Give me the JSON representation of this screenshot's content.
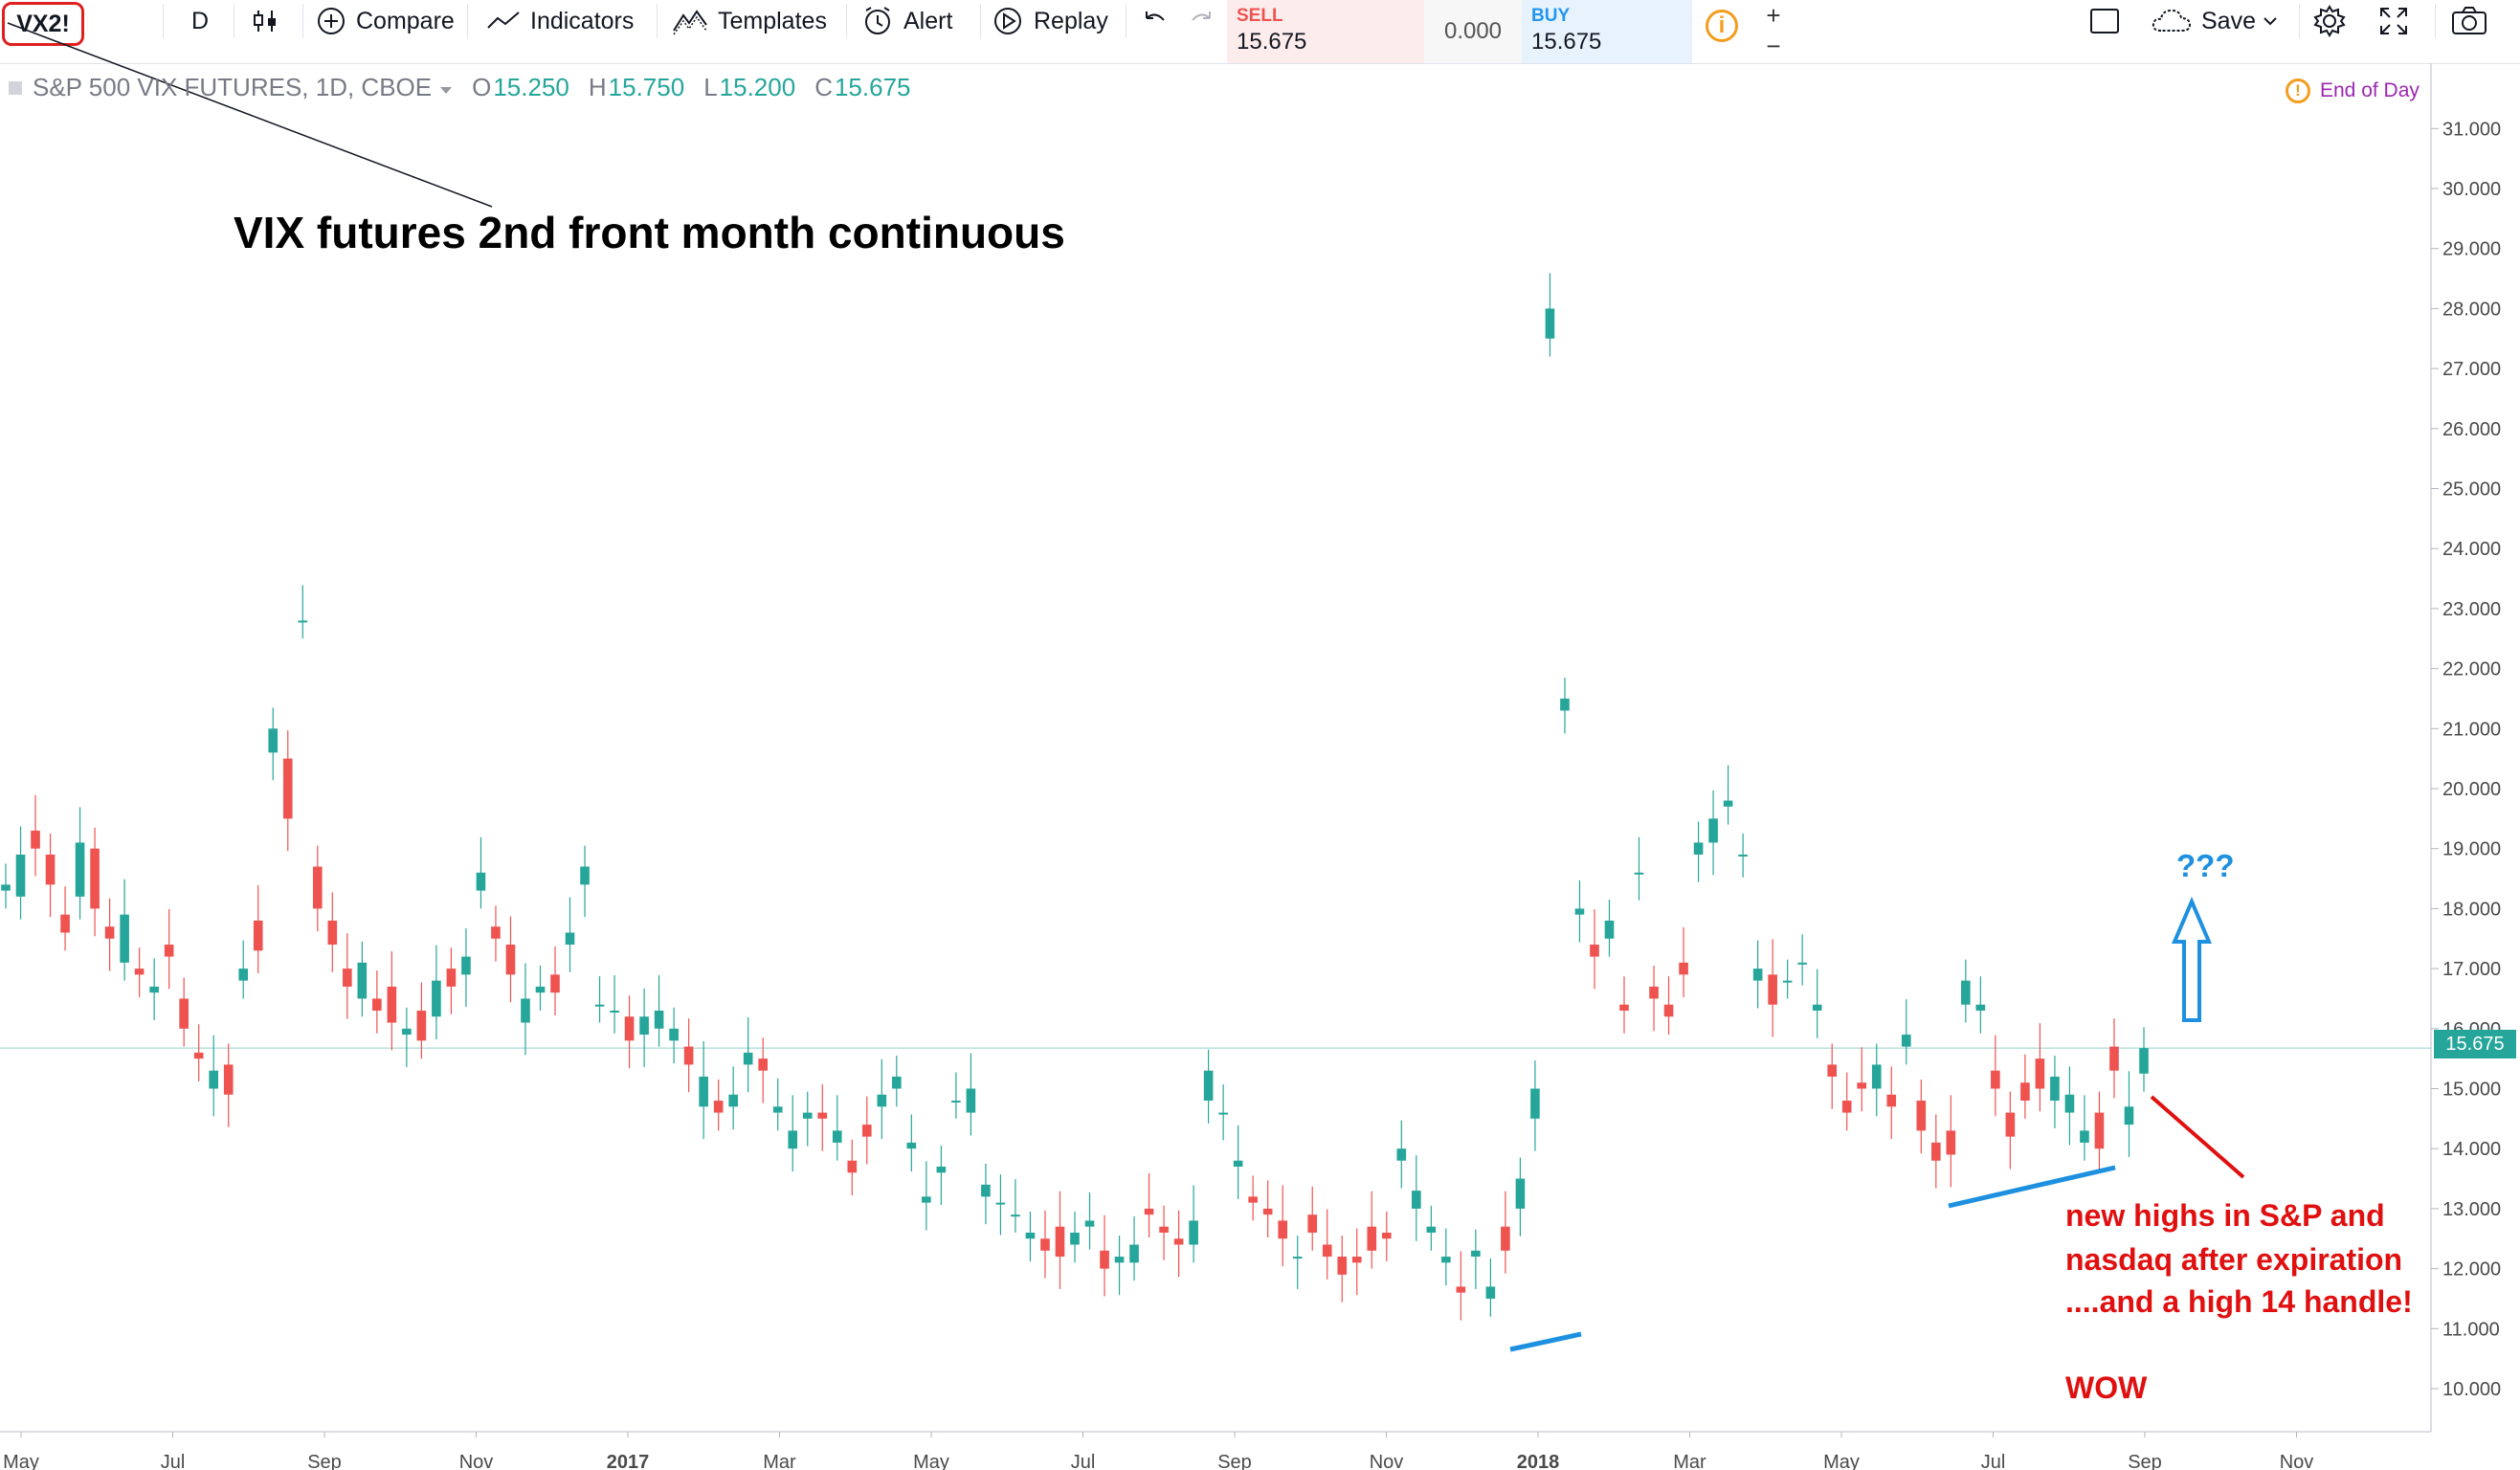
{
  "toolbar": {
    "symbol": "VX2!",
    "interval": "D",
    "compare_label": "Compare",
    "indicators_label": "Indicators",
    "templates_label": "Templates",
    "alert_label": "Alert",
    "replay_label": "Replay",
    "sell_label": "SELL",
    "sell_price": "15.675",
    "spread": "0.000",
    "buy_label": "BUY",
    "buy_price": "15.675",
    "plus": "+",
    "minus": "−",
    "save_label": "Save",
    "icons": [
      "bar-style-icon",
      "compare-plus-icon",
      "indicators-icon",
      "templates-icon",
      "alert-clock-icon",
      "replay-icon",
      "undo-icon",
      "redo-icon",
      "info-icon",
      "square-icon",
      "cloud-icon",
      "chevron-down-icon",
      "gear-icon",
      "fullscreen-icon",
      "camera-icon"
    ]
  },
  "legend": {
    "title": "S&P 500 VIX FUTURES, 1D, CBOE",
    "o_key": "O",
    "o": "15.250",
    "h_key": "H",
    "h": "15.750",
    "l_key": "L",
    "l": "15.200",
    "c_key": "C",
    "c": "15.675",
    "end_of_day": "End of Day"
  },
  "annotations": {
    "title": "VIX futures 2nd front month continuous",
    "question": "???",
    "line1": "new highs in S&P and",
    "line2": "nasdaq after expiration",
    "line3": "....and a high 14 handle!",
    "wow": "WOW"
  },
  "colors": {
    "up": "#26a69a",
    "down": "#ef5350",
    "annotation_red": "#e01010",
    "annotation_blue": "#1e90e0"
  },
  "chart_data": {
    "type": "candlestick",
    "ylim": [
      9.5,
      31.5
    ],
    "yticks": [
      "10.000",
      "11.000",
      "12.000",
      "13.000",
      "14.000",
      "15.000",
      "16.000",
      "17.000",
      "18.000",
      "19.000",
      "20.000",
      "21.000",
      "22.000",
      "23.000",
      "24.000",
      "25.000",
      "26.000",
      "27.000",
      "28.000",
      "29.000",
      "30.000",
      "31.000"
    ],
    "xticks": [
      "May",
      "Jul",
      "Sep",
      "Nov",
      "2017",
      "Mar",
      "May",
      "Jul",
      "Sep",
      "Nov",
      "2018",
      "Mar",
      "May",
      "Jul",
      "Sep",
      "Nov"
    ],
    "last_price": "15.675",
    "series": [
      {
        "name": "close",
        "values": [
          18.4,
          18.9,
          19.0,
          18.4,
          17.6,
          19.1,
          18.0,
          17.5,
          17.9,
          16.9,
          16.7,
          17.2,
          16.0,
          15.5,
          15.3,
          14.9,
          17.0,
          17.3,
          21.0,
          19.5,
          22.8,
          18.0,
          17.4,
          16.7,
          17.1,
          16.3,
          16.1,
          16.0,
          15.8,
          16.8,
          16.7,
          17.2,
          18.6,
          17.5,
          16.9,
          16.5,
          16.7,
          16.6,
          17.6,
          18.7,
          16.4,
          16.3,
          15.8,
          16.2,
          16.3,
          16.0,
          15.4,
          15.2,
          14.6,
          14.9,
          15.6,
          15.3,
          14.7,
          14.3,
          14.6,
          14.5,
          14.3,
          13.6,
          14.2,
          14.9,
          15.2,
          14.1,
          13.2,
          13.7,
          14.8,
          15.0,
          13.4,
          13.1,
          12.9,
          12.6,
          12.3,
          12.2,
          12.6,
          12.8,
          12.0,
          12.2,
          12.4,
          12.9,
          12.6,
          12.4,
          12.8,
          15.3,
          14.6,
          13.8,
          13.1,
          12.9,
          12.5,
          12.2,
          12.6,
          12.2,
          11.9,
          12.1,
          12.3,
          12.5,
          14.0,
          13.3,
          12.7,
          12.2,
          11.6,
          12.3,
          11.7,
          12.3,
          13.5,
          15.0,
          28.0,
          21.5,
          18.0,
          17.2,
          17.8,
          16.3,
          18.6,
          16.5,
          16.2,
          16.9,
          19.1,
          19.5,
          19.8,
          18.9,
          17.0,
          16.4,
          16.8,
          17.1,
          16.4,
          15.2,
          14.6,
          15.0,
          15.4,
          14.7,
          15.9,
          14.3,
          13.8,
          13.9,
          16.8,
          16.4,
          15.0,
          14.2,
          14.8,
          15.0,
          15.2,
          14.9,
          14.3,
          14.0,
          15.3,
          14.7,
          15.675
        ]
      },
      {
        "name": "open",
        "values": [
          18.3,
          18.2,
          19.3,
          18.9,
          17.9,
          18.2,
          19.0,
          17.7,
          17.1,
          17.0,
          16.6,
          17.4,
          16.5,
          15.6,
          15.0,
          15.4,
          16.8,
          17.8,
          20.6,
          20.5,
          22.8,
          18.7,
          17.8,
          17.0,
          16.5,
          16.5,
          16.7,
          15.9,
          16.3,
          16.2,
          17.0,
          16.9,
          18.3,
          17.7,
          17.4,
          16.1,
          16.6,
          16.9,
          17.4,
          18.4,
          16.4,
          16.3,
          16.2,
          15.9,
          16.0,
          15.8,
          15.7,
          14.7,
          14.8,
          14.7,
          15.4,
          15.5,
          14.6,
          14.0,
          14.5,
          14.6,
          14.1,
          13.8,
          14.4,
          14.7,
          15.0,
          14.0,
          13.1,
          13.6,
          14.8,
          14.6,
          13.2,
          13.1,
          12.9,
          12.5,
          12.5,
          12.7,
          12.4,
          12.7,
          12.3,
          12.1,
          12.1,
          13.0,
          12.7,
          12.5,
          12.4,
          14.8,
          14.6,
          13.7,
          13.2,
          13.0,
          12.8,
          12.2,
          12.9,
          12.4,
          12.2,
          12.2,
          12.7,
          12.6,
          13.8,
          13.0,
          12.6,
          12.1,
          11.7,
          12.2,
          11.5,
          12.7,
          13.0,
          14.5,
          27.5,
          21.3,
          17.9,
          17.4,
          17.5,
          16.4,
          18.6,
          16.7,
          16.4,
          17.1,
          18.9,
          19.1,
          19.7,
          18.9,
          16.8,
          16.9,
          16.8,
          17.1,
          16.3,
          15.4,
          14.8,
          15.1,
          15.0,
          14.9,
          15.7,
          14.8,
          14.1,
          14.3,
          16.4,
          16.3,
          15.3,
          14.6,
          15.1,
          15.5,
          14.8,
          14.6,
          14.1,
          14.6,
          15.7,
          14.4,
          15.25
        ]
      }
    ]
  }
}
